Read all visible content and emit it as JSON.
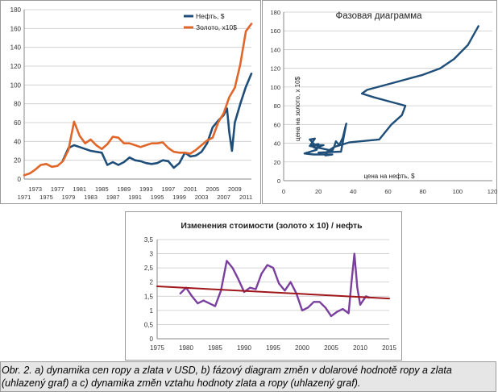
{
  "colors": {
    "oil": "#1f4e79",
    "gold": "#e0662a",
    "ratio": "#7b3f9e",
    "trend": "#a0161b",
    "grid": "#c8c8c8",
    "caption_bg": "#e6e6e6"
  },
  "chart_data": [
    {
      "type": "line",
      "title": "",
      "xlabel": "",
      "ylabel": "",
      "xlim": [
        1971,
        2012
      ],
      "ylim": [
        0,
        180
      ],
      "grid": "horizontal",
      "legend_position": "top-right",
      "x_ticks_top": [
        "1973",
        "1977",
        "1981",
        "1985",
        "1989",
        "1993",
        "1997",
        "2001",
        "2005",
        "2009"
      ],
      "x_ticks_bottom": [
        "1971",
        "1975",
        "1979",
        "1983",
        "1987",
        "1991",
        "1995",
        "1999",
        "2003",
        "2007",
        "2011"
      ],
      "y_ticks": [
        "0",
        "20",
        "40",
        "60",
        "80",
        "100",
        "120",
        "140",
        "160",
        "180"
      ],
      "series": [
        {
          "name": "Нефть, $",
          "color": "#1f4e79",
          "points": [
            [
              1978,
              20
            ],
            [
              1979,
              33
            ],
            [
              1980,
              36
            ],
            [
              1981,
              34
            ],
            [
              1982,
              32
            ],
            [
              1983,
              30
            ],
            [
              1984,
              29
            ],
            [
              1985,
              28
            ],
            [
              1986,
              15
            ],
            [
              1987,
              18
            ],
            [
              1988,
              15
            ],
            [
              1989,
              18
            ],
            [
              1990,
              23
            ],
            [
              1991,
              20
            ],
            [
              1992,
              19
            ],
            [
              1993,
              17
            ],
            [
              1994,
              16
            ],
            [
              1995,
              17
            ],
            [
              1996,
              20
            ],
            [
              1997,
              19
            ],
            [
              1998,
              12
            ],
            [
              1999,
              17
            ],
            [
              2000,
              28
            ],
            [
              2001,
              24
            ],
            [
              2002,
              25
            ],
            [
              2003,
              29
            ],
            [
              2004,
              38
            ],
            [
              2005,
              55
            ],
            [
              2006,
              62
            ],
            [
              2007,
              68
            ],
            [
              2007.6,
              75
            ],
            [
              2008,
              50
            ],
            [
              2008.5,
              30
            ],
            [
              2009,
              60
            ],
            [
              2010,
              80
            ],
            [
              2011,
              98
            ],
            [
              2012,
              112
            ]
          ]
        },
        {
          "name": "Золото, x10$",
          "color": "#e0662a",
          "points": [
            [
              1971,
              4
            ],
            [
              1972,
              6
            ],
            [
              1973,
              10
            ],
            [
              1974,
              15
            ],
            [
              1975,
              16
            ],
            [
              1976,
              13
            ],
            [
              1977,
              14
            ],
            [
              1978,
              19
            ],
            [
              1979,
              31
            ],
            [
              1980,
              61
            ],
            [
              1981,
              46
            ],
            [
              1982,
              38
            ],
            [
              1983,
              42
            ],
            [
              1984,
              36
            ],
            [
              1985,
              32
            ],
            [
              1986,
              37
            ],
            [
              1987,
              45
            ],
            [
              1988,
              44
            ],
            [
              1989,
              38
            ],
            [
              1990,
              38
            ],
            [
              1991,
              36
            ],
            [
              1992,
              34
            ],
            [
              1993,
              36
            ],
            [
              1994,
              38
            ],
            [
              1995,
              38
            ],
            [
              1996,
              39
            ],
            [
              1997,
              33
            ],
            [
              1998,
              29
            ],
            [
              1999,
              28
            ],
            [
              2000,
              28
            ],
            [
              2001,
              27
            ],
            [
              2002,
              31
            ],
            [
              2003,
              36
            ],
            [
              2004,
              41
            ],
            [
              2005,
              44
            ],
            [
              2006,
              60
            ],
            [
              2007,
              70
            ],
            [
              2008,
              87
            ],
            [
              2009,
              97
            ],
            [
              2010,
              122
            ],
            [
              2011,
              157
            ],
            [
              2012,
              165
            ]
          ]
        }
      ]
    },
    {
      "type": "line",
      "title": "Фазовая диаграмма",
      "xlabel": "цена на нефть, $",
      "ylabel": "цена на золото, x 10$",
      "xlim": [
        0,
        120
      ],
      "ylim": [
        0,
        180
      ],
      "grid": "horizontal",
      "x_ticks": [
        "0",
        "20",
        "40",
        "60",
        "80",
        "100",
        "120"
      ],
      "y_ticks": [
        "0",
        "20",
        "40",
        "60",
        "80",
        "100",
        "120",
        "140",
        "160",
        "180"
      ],
      "series": [
        {
          "name": "",
          "color": "#1f4e79",
          "points": [
            [
              20,
              30
            ],
            [
              33,
              31
            ],
            [
              36,
              61
            ],
            [
              34,
              46
            ],
            [
              32,
              38
            ],
            [
              30,
              42
            ],
            [
              29,
              36
            ],
            [
              28,
              32
            ],
            [
              15,
              37
            ],
            [
              18,
              45
            ],
            [
              15,
              44
            ],
            [
              18,
              38
            ],
            [
              23,
              38
            ],
            [
              20,
              36
            ],
            [
              19,
              34
            ],
            [
              17,
              36
            ],
            [
              16,
              38
            ],
            [
              17,
              38
            ],
            [
              20,
              39
            ],
            [
              19,
              33
            ],
            [
              12,
              29
            ],
            [
              17,
              28
            ],
            [
              28,
              28
            ],
            [
              24,
              27
            ],
            [
              25,
              31
            ],
            [
              29,
              36
            ],
            [
              38,
              41
            ],
            [
              55,
              44
            ],
            [
              62,
              60
            ],
            [
              68,
              70
            ],
            [
              70,
              80
            ],
            [
              62,
              84
            ],
            [
              52,
              89
            ],
            [
              45,
              93
            ],
            [
              48,
              97
            ],
            [
              58,
              102
            ],
            [
              70,
              108
            ],
            [
              80,
              113
            ],
            [
              90,
              120
            ],
            [
              98,
              130
            ],
            [
              106,
              145
            ],
            [
              112,
              165
            ]
          ]
        }
      ]
    },
    {
      "type": "line",
      "title": "Изменения стоимости (золото x 10) / нефть",
      "xlabel": "",
      "ylabel": "",
      "xlim": [
        1975,
        2015
      ],
      "ylim": [
        0,
        3.5
      ],
      "grid": "horizontal",
      "x_ticks": [
        "1975",
        "1980",
        "1985",
        "1990",
        "1995",
        "2000",
        "2005",
        "2010",
        "2015"
      ],
      "y_ticks": [
        "0",
        "0,5",
        "1",
        "1,5",
        "2",
        "2,5",
        "3",
        "3,5"
      ],
      "series": [
        {
          "name": "",
          "color": "#7b3f9e",
          "points": [
            [
              1979,
              1.6
            ],
            [
              1980,
              1.8
            ],
            [
              1981,
              1.5
            ],
            [
              1982,
              1.25
            ],
            [
              1983,
              1.35
            ],
            [
              1984,
              1.25
            ],
            [
              1985,
              1.15
            ],
            [
              1986,
              1.7
            ],
            [
              1987,
              2.75
            ],
            [
              1988,
              2.5
            ],
            [
              1989,
              2.1
            ],
            [
              1990,
              1.65
            ],
            [
              1991,
              1.8
            ],
            [
              1992,
              1.75
            ],
            [
              1993,
              2.3
            ],
            [
              1994,
              2.6
            ],
            [
              1995,
              2.5
            ],
            [
              1996,
              1.95
            ],
            [
              1997,
              1.7
            ],
            [
              1998,
              2.0
            ],
            [
              1999,
              1.6
            ],
            [
              2000,
              1.0
            ],
            [
              2001,
              1.1
            ],
            [
              2002,
              1.3
            ],
            [
              2003,
              1.3
            ],
            [
              2004,
              1.1
            ],
            [
              2005,
              0.8
            ],
            [
              2006,
              0.95
            ],
            [
              2007,
              1.05
            ],
            [
              2008,
              0.9
            ],
            [
              2008.5,
              2.0
            ],
            [
              2009,
              3.0
            ],
            [
              2009.5,
              1.8
            ],
            [
              2010,
              1.2
            ],
            [
              2011,
              1.5
            ],
            [
              2011.5,
              1.45
            ]
          ]
        },
        {
          "name": "",
          "color": "#a0161b",
          "points": [
            [
              1975,
              1.85
            ],
            [
              2015,
              1.42
            ]
          ]
        }
      ]
    }
  ],
  "caption": "Obr. 2. a) dynamika cen ropy a zlata v USD, b) fázový diagram změn v dolarové hodnotě ropy a zlata (uhlazený graf) a c) dynamika změn vztahu hodnoty zlata a ropy (uhlazený graf)."
}
